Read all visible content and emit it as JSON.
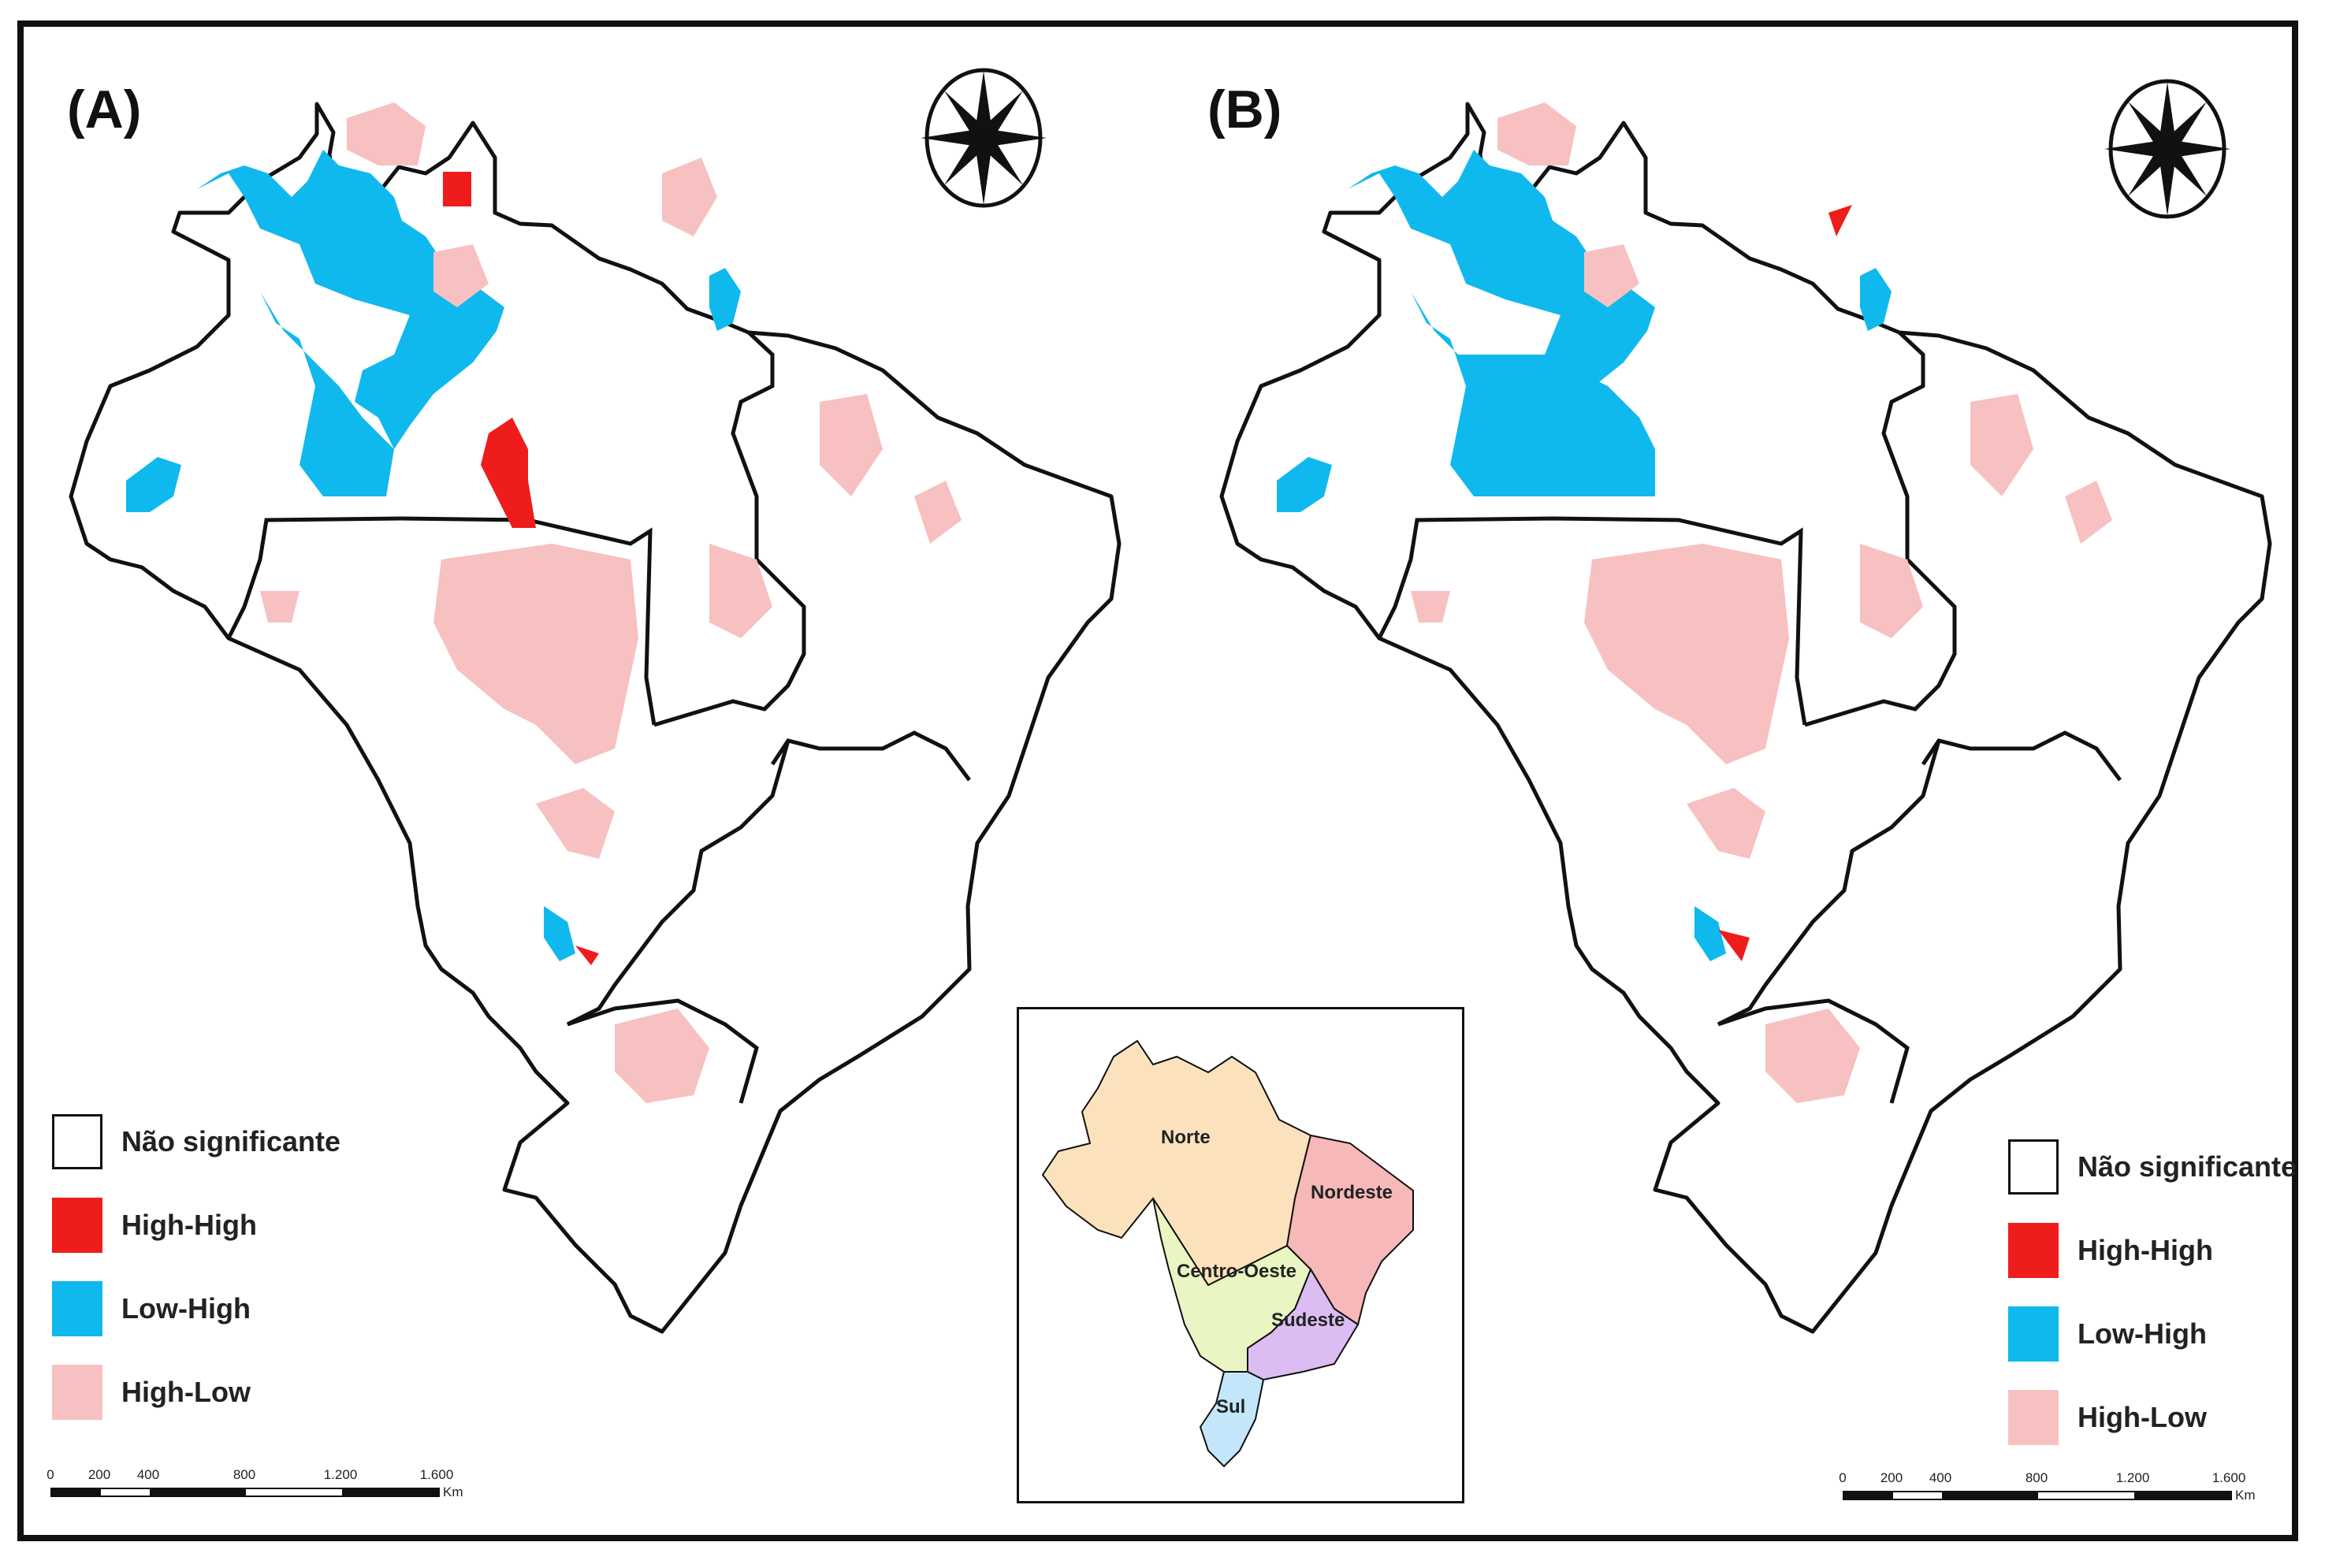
{
  "panels": [
    {
      "label": "(A)"
    },
    {
      "label": "(B)"
    }
  ],
  "legend": {
    "items": [
      {
        "label": "Não significante",
        "color": "#ffffff"
      },
      {
        "label": "High-High",
        "color": "#ef1c1c"
      },
      {
        "label": "Low-High",
        "color": "#0fb9ee"
      },
      {
        "label": "High-Low",
        "color": "#f7c1c1"
      }
    ]
  },
  "scale": {
    "ticks": [
      "0",
      "200",
      "400",
      "800",
      "1.200",
      "1.600"
    ],
    "unit": "Km"
  },
  "inset": {
    "regions": [
      {
        "name": "Norte",
        "color": "#fbe2bd"
      },
      {
        "name": "Nordeste",
        "color": "#f6b8b8"
      },
      {
        "name": "Centro-Oeste",
        "color": "#e9f5c2"
      },
      {
        "name": "Sudeste",
        "color": "#dcbdf3"
      },
      {
        "name": "Sul",
        "color": "#c4e6fb"
      }
    ]
  },
  "colors": {
    "not_significant": "#ffffff",
    "high_high": "#ef1c1c",
    "low_high": "#0fb9ee",
    "high_low": "#f7c1c1",
    "border": "#111111"
  }
}
